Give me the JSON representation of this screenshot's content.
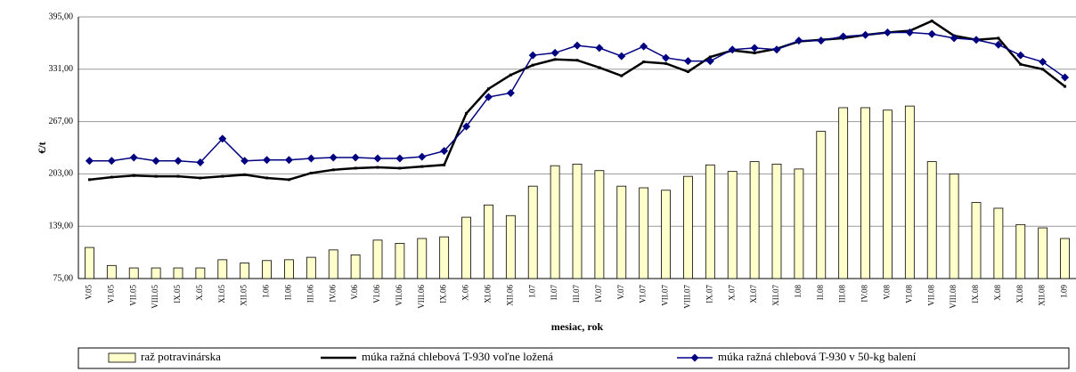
{
  "chart_data": {
    "type": "combo",
    "x_label": "mesiac, rok",
    "y_label": "€/t",
    "categories": [
      "V.05",
      "VI.05",
      "VII.05",
      "VIII.05",
      "IX.05",
      "X.05",
      "XI.05",
      "XII.05",
      "I.06",
      "II.06",
      "III.06",
      "IV.06",
      "V.06",
      "VI.06",
      "VII.06",
      "VIII.06",
      "IX.06",
      "X.06",
      "XI.06",
      "XII.06",
      "I.07",
      "II.07",
      "III.07",
      "IV.07",
      "V.07",
      "VI.07",
      "VII.07",
      "VIII.07",
      "IX.07",
      "X.07",
      "XI.07",
      "XII.07",
      "I.08",
      "II.08",
      "III.08",
      "IV.08",
      "V.08",
      "VI.08",
      "VII.08",
      "VIII.08",
      "IX.08",
      "X.08",
      "XI.08",
      "XII.08",
      "I.09"
    ],
    "ylim": [
      75,
      395
    ],
    "yticks": [
      {
        "value": 75,
        "label": "75,00"
      },
      {
        "value": 139,
        "label": "139,00"
      },
      {
        "value": 203,
        "label": "203,00"
      },
      {
        "value": 267,
        "label": "267,00"
      },
      {
        "value": 331,
        "label": "331,00"
      },
      {
        "value": 395,
        "label": "395,00"
      }
    ],
    "grid": true,
    "legend": "bottom",
    "series": [
      {
        "name": "raž potravinárska",
        "type": "bar",
        "color": "#ffffcc",
        "values": [
          113,
          91,
          88,
          88,
          88,
          88,
          98,
          94,
          97,
          98,
          101,
          110,
          104,
          122,
          118,
          124,
          126,
          150,
          165,
          152,
          188,
          213,
          215,
          207,
          188,
          186,
          183,
          200,
          214,
          206,
          218,
          215,
          209,
          255,
          284,
          284,
          281,
          286,
          218,
          203,
          168,
          161,
          141,
          137,
          124
        ]
      },
      {
        "name": "múka ražná chlebová T-930 voľne ložená",
        "type": "line",
        "color": "#000000",
        "values": [
          196,
          199,
          201,
          200,
          200,
          198,
          200,
          202,
          198,
          196,
          204,
          208,
          210,
          211,
          210,
          212,
          214,
          277,
          307,
          324,
          336,
          343,
          342,
          333,
          323,
          340,
          338,
          328,
          346,
          354,
          351,
          356,
          365,
          367,
          369,
          373,
          376,
          378,
          390,
          372,
          367,
          369,
          337,
          331,
          310
        ]
      },
      {
        "name": "múka ražná chlebová T-930 v 50-kg balení",
        "type": "line",
        "color": "#000080",
        "marker": "diamond",
        "values": [
          219,
          219,
          223,
          219,
          219,
          217,
          246,
          219,
          220,
          220,
          222,
          223,
          223,
          222,
          222,
          224,
          231,
          261,
          297,
          302,
          348,
          351,
          360,
          357,
          347,
          359,
          345,
          341,
          341,
          355,
          357,
          355,
          366,
          366,
          371,
          373,
          376,
          376,
          374,
          369,
          367,
          361,
          348,
          340,
          321
        ]
      }
    ]
  }
}
